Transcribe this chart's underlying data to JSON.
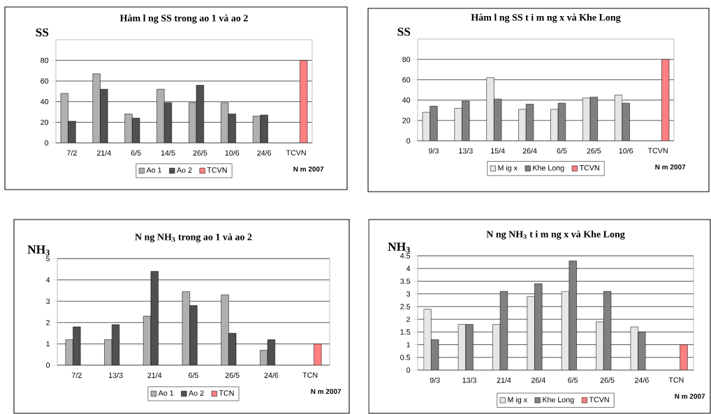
{
  "chart_data": [
    {
      "type": "bar",
      "title": "Hàm l    ng SS trong ao 1 và ao 2",
      "ylabel": "SS",
      "xlabel": "N  m 2007",
      "categories": [
        "7/2",
        "21/4",
        "6/5",
        "14/5",
        "26/5",
        "10/6",
        "24/6",
        "TCVN"
      ],
      "series": [
        {
          "name": "Ao 1",
          "color": "#b0b0b0",
          "values": [
            48,
            67,
            28,
            52,
            39,
            39,
            26,
            null
          ]
        },
        {
          "name": "Ao 2",
          "color": "#505050",
          "values": [
            21,
            52,
            24,
            39,
            56,
            28,
            27,
            null
          ]
        },
        {
          "name": "TCVN",
          "color": "#ff8080",
          "values": [
            null,
            null,
            null,
            null,
            null,
            null,
            null,
            80
          ]
        }
      ],
      "ylim": [
        0,
        100
      ],
      "yticks": [
        0,
        20,
        40,
        60,
        80
      ],
      "grid": "y",
      "legend": "bottom"
    },
    {
      "type": "bar",
      "title": "Hàm l    ng SS t  i m     ng x    và Khe Long",
      "ylabel": "SS",
      "xlabel": "N  m 2007",
      "categories": [
        "9/3",
        "13/3",
        "15/4",
        "26/4",
        "6/5",
        "26/5",
        "10/6",
        "TCVN"
      ],
      "series": [
        {
          "name": "M     ig x",
          "color": "#e6e6e6",
          "values": [
            28,
            32,
            62,
            31,
            31,
            42,
            45,
            null
          ]
        },
        {
          "name": "Khe Long",
          "color": "#808080",
          "values": [
            34,
            39,
            41,
            36,
            37,
            43,
            37,
            null
          ]
        },
        {
          "name": "TCVN",
          "color": "#ff8080",
          "values": [
            null,
            null,
            null,
            null,
            null,
            null,
            null,
            80
          ]
        }
      ],
      "ylim": [
        0,
        100
      ],
      "yticks": [
        0,
        20,
        40,
        60,
        80
      ],
      "grid": "y",
      "legend": "bottom"
    },
    {
      "type": "bar",
      "title": "N  ng     NH$_{3}$ trong ao 1 và ao 2",
      "ylabel": "NH$_{3}$",
      "xlabel": "N  m 2007",
      "categories": [
        "7/2",
        "13/3",
        "21/4",
        "6/5",
        "26/5",
        "24/6",
        "TCN"
      ],
      "series": [
        {
          "name": "Ao 1",
          "color": "#b0b0b0",
          "values": [
            1.2,
            1.2,
            2.3,
            3.45,
            3.3,
            0.7,
            null
          ]
        },
        {
          "name": "Ao 2",
          "color": "#505050",
          "values": [
            1.8,
            1.9,
            4.4,
            2.8,
            1.5,
            1.2,
            null
          ]
        },
        {
          "name": "TCN",
          "color": "#ff8080",
          "values": [
            null,
            null,
            null,
            null,
            null,
            null,
            1
          ]
        }
      ],
      "ylim": [
        0,
        5
      ],
      "yticks": [
        0,
        1,
        2,
        3,
        4,
        5
      ],
      "grid": "y",
      "legend": "bottom"
    },
    {
      "type": "bar",
      "title": "N  ng     NH$_{3}$ t  i m     ng x    và Khe Long",
      "ylabel": "NH$_{3}$",
      "xlabel": "N  m 2007",
      "categories": [
        "9/3",
        "13/3",
        "21/4",
        "26/4",
        "6/5",
        "26/5",
        "24/6",
        "TCN"
      ],
      "series": [
        {
          "name": "M     ig x",
          "color": "#e6e6e6",
          "values": [
            2.4,
            1.8,
            1.8,
            2.9,
            3.1,
            1.9,
            1.7,
            null
          ]
        },
        {
          "name": "Khe Long",
          "color": "#808080",
          "values": [
            1.2,
            1.8,
            3.1,
            3.4,
            4.3,
            3.1,
            1.5,
            null
          ]
        },
        {
          "name": "TCVN",
          "color": "#ff8080",
          "values": [
            null,
            null,
            null,
            null,
            null,
            null,
            null,
            1
          ]
        }
      ],
      "ylim": [
        0,
        4.5
      ],
      "yticks": [
        0,
        0.5,
        1,
        1.5,
        2,
        2.5,
        3,
        3.5,
        4,
        4.5
      ],
      "grid": "y",
      "legend": "bottom"
    }
  ]
}
